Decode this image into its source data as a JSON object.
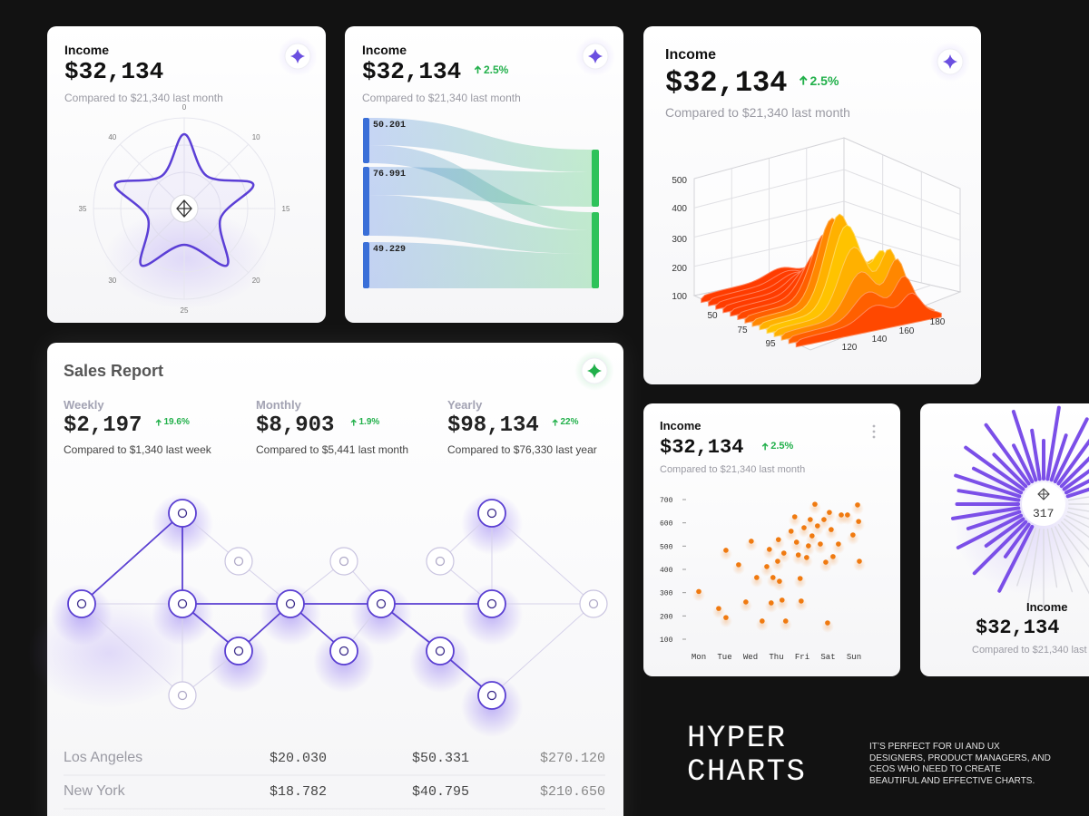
{
  "radar_card": {
    "title": "Income",
    "value": "$32,134",
    "compare": "Compared to $21,340 last month",
    "axis_labels": [
      "0",
      "10",
      "15",
      "20",
      "25",
      "30",
      "35",
      "40"
    ]
  },
  "sankey_card": {
    "title": "Income",
    "value": "$32,134",
    "change": "2.5%",
    "compare": "Compared to $21,340 last month",
    "node_labels": [
      "50.201",
      "76.991",
      "49.229"
    ]
  },
  "surface_card": {
    "title": "Income",
    "value": "$32,134",
    "change": "2.5%",
    "compare": "Compared to $21,340 last month",
    "y_labels": [
      "500",
      "400",
      "300",
      "200",
      "100"
    ],
    "x_labels": [
      "50",
      "75",
      "95"
    ],
    "z_labels": [
      "120",
      "140",
      "160",
      "180"
    ]
  },
  "sales_report": {
    "title": "Sales Report",
    "stats": [
      {
        "period": "Weekly",
        "value": "$2,197",
        "change": "19.6%",
        "compare": "Compared to $1,340 last week"
      },
      {
        "period": "Monthly",
        "value": "$8,903",
        "change": "1.9%",
        "compare": "Compared to $5,441 last month"
      },
      {
        "period": "Yearly",
        "value": "$98,134",
        "change": "22%",
        "compare": "Compared to $76,330 last year"
      }
    ],
    "table": {
      "rows": [
        [
          "Los Angeles",
          "$20.030",
          "$50.331",
          "$270.120"
        ],
        [
          "New York",
          "$18.782",
          "$40.795",
          "$210.650"
        ]
      ]
    }
  },
  "scatter_card": {
    "title": "Income",
    "value": "$32,134",
    "change": "2.5%",
    "compare": "Compared to $21,340 last month",
    "ylim": [
      100,
      700
    ],
    "yticks": [
      100,
      200,
      300,
      400,
      500,
      600,
      700
    ],
    "categories": [
      "Mon",
      "Tue",
      "Wed",
      "Thu",
      "Fri",
      "Sat",
      "Sun"
    ],
    "color": "#f07a10",
    "points": {
      "x": [
        0,
        0.77,
        1.05,
        1.05,
        1.54,
        1.82,
        2.03,
        2.24,
        2.45,
        2.63,
        2.73,
        2.8,
        2.87,
        3.05,
        3.08,
        3.12,
        3.22,
        3.36,
        3.29,
        3.57,
        3.71,
        3.78,
        3.85,
        3.92,
        3.96,
        4.07,
        4.17,
        4.24,
        4.31,
        4.38,
        4.49,
        4.59,
        4.7,
        4.84,
        4.91,
        4.98,
        5.05,
        5.12,
        5.19,
        5.4,
        5.51,
        5.75,
        5.96,
        6.14,
        6.18,
        6.21
      ],
      "y": [
        305,
        232,
        193,
        482,
        420,
        260,
        521,
        365,
        178,
        412,
        486,
        256,
        365,
        435,
        528,
        349,
        268,
        178,
        470,
        564,
        626,
        517,
        462,
        361,
        264,
        579,
        451,
        501,
        614,
        544,
        680,
        587,
        509,
        614,
        431,
        170,
        645,
        571,
        455,
        509,
        634,
        634,
        548,
        677,
        606,
        435
      ]
    }
  },
  "radial_card": {
    "center_value": "317",
    "title": "Income",
    "value": "$32,134",
    "compare": "Compared to $21,340 last"
  },
  "brand": {
    "title_lines": [
      "HYPER",
      "CHARTS"
    ],
    "description": "IT’S PERFECT FOR UI AND UX DESIGNERS, PRODUCT MANAGERS, AND CEOS WHO NEED TO CREATE BEAUTIFUL AND EFFECTIVE CHARTS."
  }
}
